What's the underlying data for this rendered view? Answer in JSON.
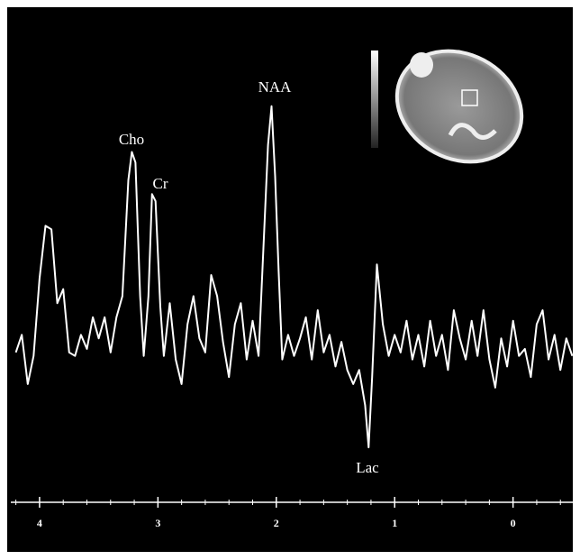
{
  "chart_data": {
    "type": "line",
    "color": "#ffffff",
    "annotations": [
      "Cho",
      "Cr",
      "NAA",
      "Lac"
    ],
    "x": [
      4.2,
      4.15,
      4.1,
      4.05,
      4.0,
      3.95,
      3.9,
      3.85,
      3.8,
      3.75,
      3.7,
      3.65,
      3.6,
      3.55,
      3.5,
      3.45,
      3.4,
      3.35,
      3.3,
      3.25,
      3.22,
      3.19,
      3.15,
      3.12,
      3.08,
      3.05,
      3.02,
      2.98,
      2.95,
      2.9,
      2.85,
      2.8,
      2.75,
      2.7,
      2.65,
      2.6,
      2.55,
      2.5,
      2.45,
      2.4,
      2.35,
      2.3,
      2.25,
      2.2,
      2.15,
      2.1,
      2.07,
      2.04,
      2.01,
      1.98,
      1.95,
      1.9,
      1.85,
      1.8,
      1.75,
      1.7,
      1.65,
      1.6,
      1.55,
      1.5,
      1.45,
      1.4,
      1.35,
      1.3,
      1.25,
      1.22,
      1.19,
      1.15,
      1.1,
      1.05,
      1.0,
      0.95,
      0.9,
      0.85,
      0.8,
      0.75,
      0.7,
      0.65,
      0.6,
      0.55,
      0.5,
      0.45,
      0.4,
      0.35,
      0.3,
      0.25,
      0.2,
      0.15,
      0.1,
      0.05,
      0.0,
      -0.05,
      -0.1,
      -0.15,
      -0.2,
      -0.25,
      -0.3,
      -0.35,
      -0.4,
      -0.45,
      -0.5
    ],
    "values": [
      28,
      33,
      19,
      27,
      49,
      64,
      63,
      42,
      46,
      28,
      27,
      33,
      29,
      38,
      32,
      38,
      28,
      38,
      44,
      77,
      85,
      82,
      44,
      27,
      44,
      73,
      71,
      41,
      27,
      42,
      26,
      19,
      36,
      44,
      32,
      28,
      50,
      44,
      31,
      21,
      36,
      42,
      26,
      37,
      27,
      64,
      87,
      98,
      78,
      51,
      26,
      33,
      27,
      32,
      38,
      26,
      40,
      28,
      33,
      24,
      31,
      23,
      19,
      23,
      13,
      1,
      21,
      53,
      36,
      27,
      33,
      28,
      37,
      26,
      33,
      24,
      37,
      27,
      33,
      23,
      40,
      32,
      26,
      37,
      27,
      40,
      26,
      18,
      32,
      24,
      37,
      27,
      29,
      21,
      36,
      40,
      26,
      33,
      23,
      32,
      27
    ],
    "xlim": [
      4.22,
      -0.52
    ],
    "ylim": [
      0,
      100
    ],
    "xticks": [
      4,
      3,
      2,
      1,
      0
    ],
    "xminorticks": [
      4.2,
      3.8,
      3.6,
      3.4,
      3.2,
      2.8,
      2.6,
      2.4,
      2.2,
      1.8,
      1.6,
      1.4,
      1.2,
      0.8,
      0.6,
      0.4,
      0.2,
      -0.2,
      -0.4
    ]
  }
}
